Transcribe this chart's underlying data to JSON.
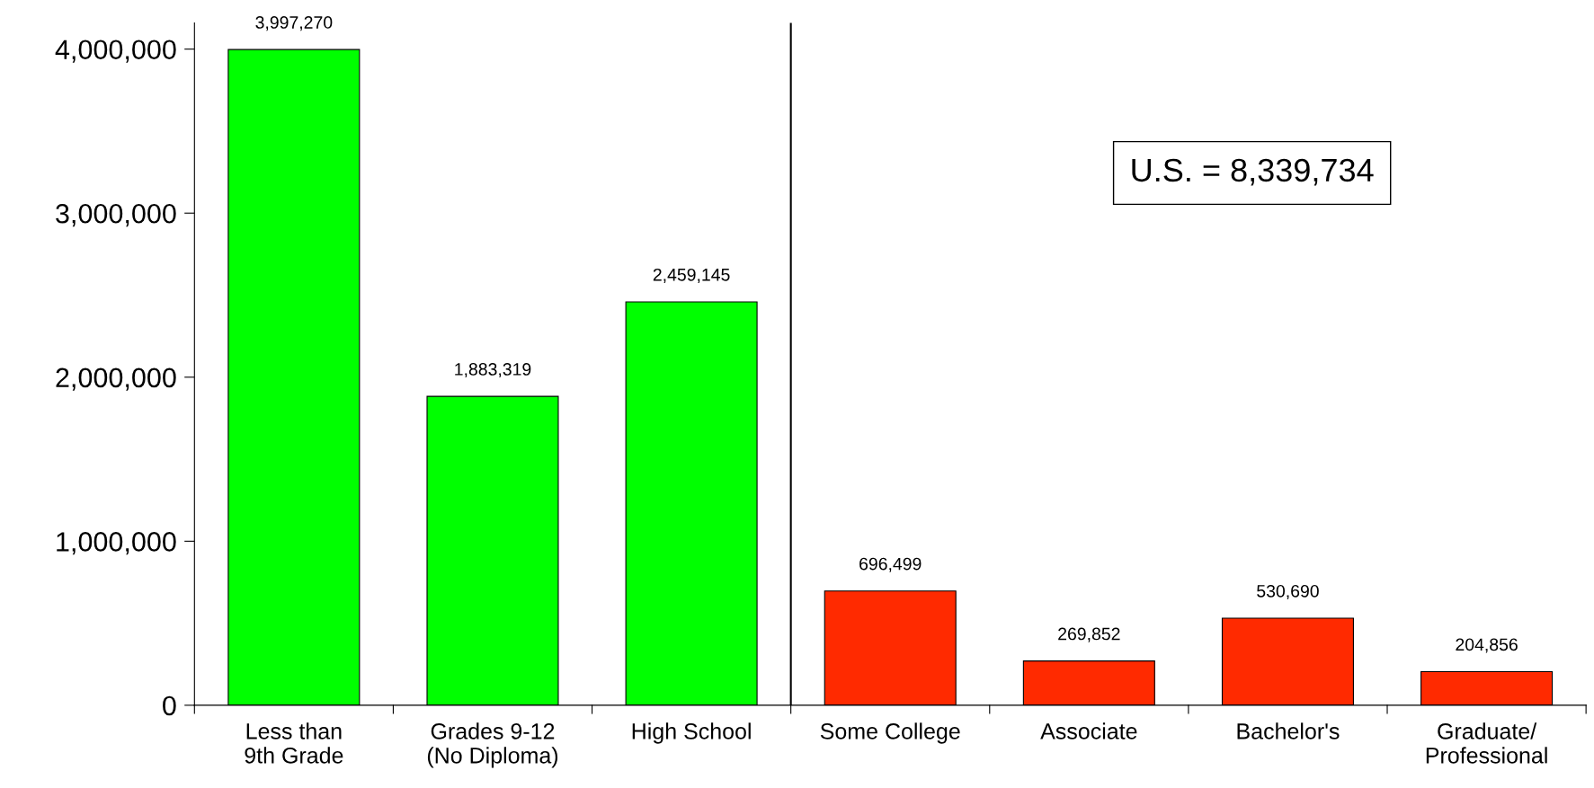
{
  "chart_data": {
    "type": "bar",
    "categories": [
      "Less than\n9th Grade",
      "Grades 9-12\n(No Diploma)",
      "High School",
      "Some College",
      "Associate",
      "Bachelor's",
      "Graduate/\nProfessional"
    ],
    "values": [
      3997270,
      1883319,
      2459145,
      696499,
      269852,
      530690,
      204856
    ],
    "colors": [
      "#00ff00",
      "#00ff00",
      "#00ff00",
      "#ff2a00",
      "#ff2a00",
      "#ff2a00",
      "#ff2a00"
    ],
    "ylim": [
      0,
      4160000
    ],
    "yticks": [
      {
        "value": 0,
        "label": "0"
      },
      {
        "value": 1000000,
        "label": "1,000,000"
      },
      {
        "value": 2000000,
        "label": "2,000,000"
      },
      {
        "value": 3000000,
        "label": "3,000,000"
      },
      {
        "value": 4000000,
        "label": "4,000,000"
      }
    ],
    "value_labels": [
      "3,997,270",
      "1,883,319",
      "2,459,145",
      "696,499",
      "269,852",
      "530,690",
      "204,856"
    ],
    "grid": false,
    "legend": false,
    "annotations": [
      "U.S. = 8,339,734"
    ]
  }
}
